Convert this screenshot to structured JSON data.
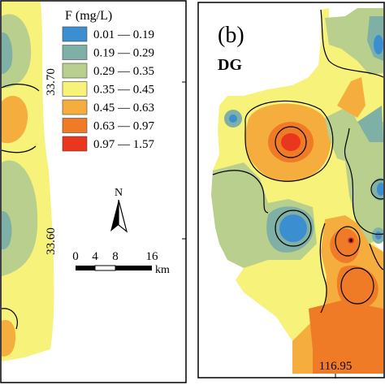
{
  "legend": {
    "title": "F (mg/L)",
    "items": [
      {
        "label": "0.01 — 0.19",
        "color": "#3b8fd0"
      },
      {
        "label": "0.19 — 0.29",
        "color": "#7fb0a6"
      },
      {
        "label": "0.29 — 0.35",
        "color": "#b8cf8e"
      },
      {
        "label": "0.35 — 0.45",
        "color": "#f6f27a"
      },
      {
        "label": "0.45 — 0.63",
        "color": "#f5ad3d"
      },
      {
        "label": "0.63 — 0.97",
        "color": "#ef7b26"
      },
      {
        "label": "0.97 — 1.57",
        "color": "#e9361c"
      }
    ]
  },
  "north_arrow": {
    "label": "N"
  },
  "scale_bar": {
    "ticks": [
      "0",
      "4",
      "8",
      "16"
    ],
    "unit": "km"
  },
  "panel_a": {
    "lat_ticks": [
      "33.70",
      "33.60"
    ]
  },
  "panel_b": {
    "panel_label": "(b)",
    "region_label": "DG",
    "lon_tick": "116.95"
  }
}
